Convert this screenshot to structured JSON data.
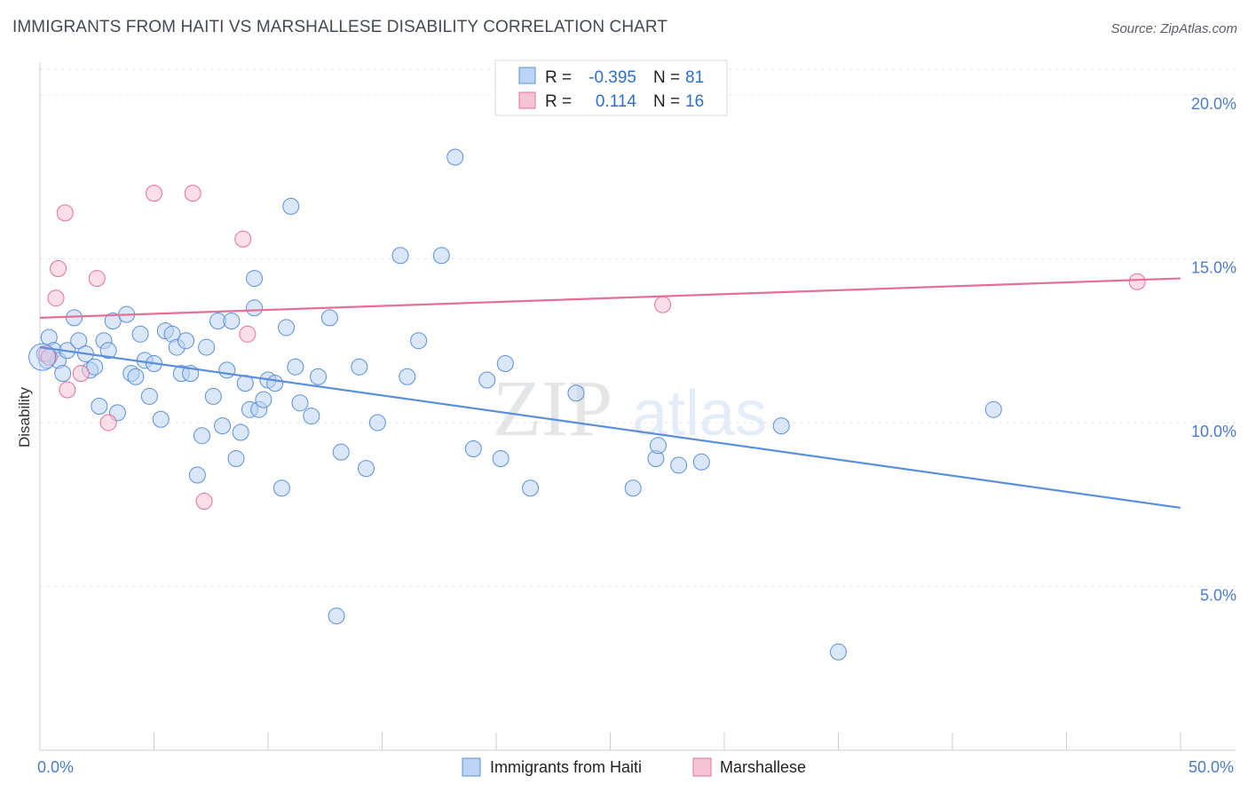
{
  "title": "IMMIGRANTS FROM HAITI VS MARSHALLESE DISABILITY CORRELATION CHART",
  "source": "Source: ZipAtlas.com",
  "watermark": {
    "left": "ZIP",
    "right": "atlas"
  },
  "chart_data": {
    "type": "scatter",
    "ylabel": "Disability",
    "xlim": [
      0,
      50
    ],
    "ylim": [
      0,
      21
    ],
    "x_tick_labels": [
      {
        "value": 0,
        "label": "0.0%"
      },
      {
        "value": 50,
        "label": "50.0%"
      }
    ],
    "x_minor_ticks": [
      0,
      5,
      10,
      15,
      20,
      25,
      30,
      35,
      40,
      45,
      50
    ],
    "y_ticks": [
      {
        "value": 5,
        "label": "5.0%"
      },
      {
        "value": 10,
        "label": "10.0%"
      },
      {
        "value": 15,
        "label": "15.0%"
      },
      {
        "value": 20,
        "label": "20.0%"
      }
    ],
    "grid": true,
    "legend_position": "top-center",
    "series": [
      {
        "name": "Immigrants from Haiti",
        "color": "#5b8fd9",
        "fill": "#bcd4f3",
        "r_label": "R =",
        "r_value": "-0.395",
        "n_label": "N =",
        "n_value": "81",
        "trend": {
          "x0": 0,
          "y0": 12.3,
          "x1": 50,
          "y1": 7.4
        },
        "points": [
          [
            0.3,
            11.9
          ],
          [
            0.4,
            12.6
          ],
          [
            0.6,
            12.2
          ],
          [
            0.8,
            11.9
          ],
          [
            1.0,
            11.5
          ],
          [
            1.2,
            12.2
          ],
          [
            1.5,
            13.2
          ],
          [
            1.7,
            12.5
          ],
          [
            2.0,
            12.1
          ],
          [
            2.2,
            11.6
          ],
          [
            2.4,
            11.7
          ],
          [
            2.6,
            10.5
          ],
          [
            2.8,
            12.5
          ],
          [
            3.0,
            12.2
          ],
          [
            3.2,
            13.1
          ],
          [
            3.4,
            10.3
          ],
          [
            3.8,
            13.3
          ],
          [
            4.0,
            11.5
          ],
          [
            4.2,
            11.4
          ],
          [
            4.4,
            12.7
          ],
          [
            4.6,
            11.9
          ],
          [
            4.8,
            10.8
          ],
          [
            5.0,
            11.8
          ],
          [
            5.3,
            10.1
          ],
          [
            5.5,
            12.8
          ],
          [
            5.8,
            12.7
          ],
          [
            6.0,
            12.3
          ],
          [
            6.2,
            11.5
          ],
          [
            6.4,
            12.5
          ],
          [
            6.6,
            11.5
          ],
          [
            6.9,
            8.4
          ],
          [
            7.1,
            9.6
          ],
          [
            7.3,
            12.3
          ],
          [
            7.6,
            10.8
          ],
          [
            7.8,
            13.1
          ],
          [
            8.0,
            9.9
          ],
          [
            8.2,
            11.6
          ],
          [
            8.4,
            13.1
          ],
          [
            8.6,
            8.9
          ],
          [
            8.8,
            9.7
          ],
          [
            9.0,
            11.2
          ],
          [
            9.2,
            10.4
          ],
          [
            9.4,
            13.5
          ],
          [
            9.6,
            10.4
          ],
          [
            9.8,
            10.7
          ],
          [
            10.0,
            11.3
          ],
          [
            10.3,
            11.2
          ],
          [
            10.6,
            8.0
          ],
          [
            10.8,
            12.9
          ],
          [
            11.0,
            16.6
          ],
          [
            11.2,
            11.7
          ],
          [
            11.4,
            10.6
          ],
          [
            11.9,
            10.2
          ],
          [
            12.2,
            11.4
          ],
          [
            12.7,
            13.2
          ],
          [
            13.0,
            4.1
          ],
          [
            13.2,
            9.1
          ],
          [
            14.0,
            11.7
          ],
          [
            14.3,
            8.6
          ],
          [
            14.8,
            10.0
          ],
          [
            15.8,
            15.1
          ],
          [
            16.1,
            11.4
          ],
          [
            16.6,
            12.5
          ],
          [
            17.6,
            15.1
          ],
          [
            18.2,
            18.1
          ],
          [
            19.0,
            9.2
          ],
          [
            19.6,
            11.3
          ],
          [
            20.2,
            8.9
          ],
          [
            20.4,
            11.8
          ],
          [
            21.5,
            8.0
          ],
          [
            23.5,
            10.9
          ],
          [
            26.0,
            8.0
          ],
          [
            27.0,
            8.9
          ],
          [
            27.1,
            9.3
          ],
          [
            28.0,
            8.7
          ],
          [
            29.0,
            8.8
          ],
          [
            32.5,
            9.9
          ],
          [
            35.0,
            3.0
          ],
          [
            41.8,
            10.4
          ],
          [
            9.4,
            14.4
          ],
          [
            0.2,
            12.1
          ]
        ]
      },
      {
        "name": "Marshallese",
        "color": "#e46f97",
        "fill": "#f7c3d4",
        "r_label": "R =",
        "r_value": "0.114",
        "n_label": "N =",
        "n_value": "16",
        "trend": {
          "x0": 0,
          "y0": 13.2,
          "x1": 50,
          "y1": 14.4
        },
        "points": [
          [
            0.3,
            12.1
          ],
          [
            0.7,
            13.8
          ],
          [
            0.8,
            14.7
          ],
          [
            1.1,
            16.4
          ],
          [
            1.2,
            11.0
          ],
          [
            1.8,
            11.5
          ],
          [
            2.5,
            14.4
          ],
          [
            3.0,
            10.0
          ],
          [
            5.0,
            17.0
          ],
          [
            6.7,
            17.0
          ],
          [
            7.2,
            7.6
          ],
          [
            8.9,
            15.6
          ],
          [
            9.1,
            12.7
          ],
          [
            27.3,
            13.6
          ],
          [
            48.1,
            14.3
          ],
          [
            0.4,
            12.0
          ]
        ]
      }
    ]
  }
}
